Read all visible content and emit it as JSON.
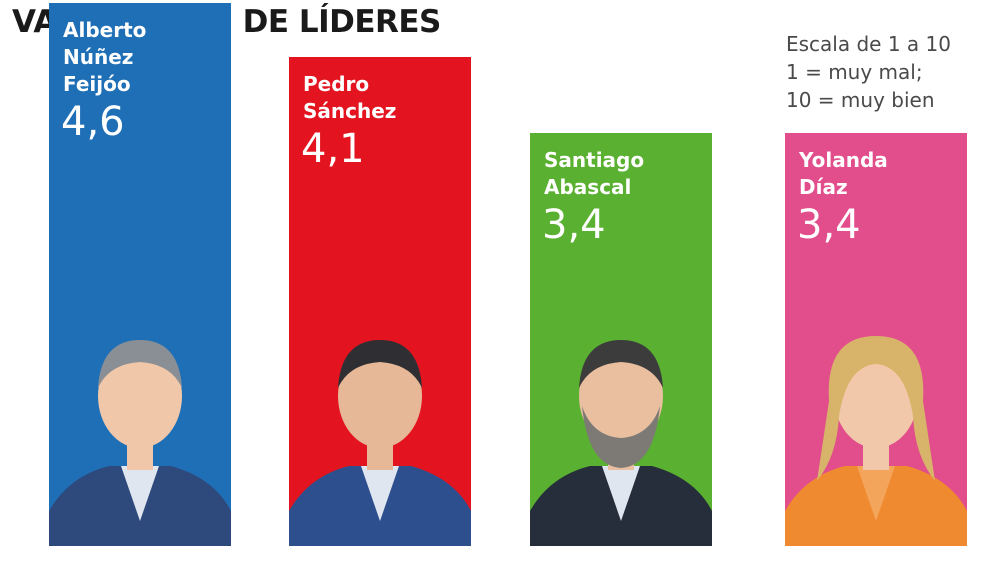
{
  "title": "VALORACIÓN DE LÍDERES",
  "legend": {
    "line1": "Escala de 1 a 10",
    "line2": "1 = muy mal;",
    "line3": "10 = muy bien"
  },
  "chart_data": {
    "type": "bar",
    "title": "VALORACIÓN DE LÍDERES",
    "categories": [
      "Alberto Núñez Feijóo",
      "Pedro Sánchez",
      "Santiago Abascal",
      "Yolanda Díaz"
    ],
    "value_labels": [
      "4,6",
      "4,1",
      "3,4",
      "3,4"
    ],
    "values": [
      4.6,
      4.1,
      3.4,
      3.4
    ],
    "colors": [
      "#1f6fb6",
      "#e3141f",
      "#5ab031",
      "#e24e8c"
    ],
    "name_lines": [
      "Alberto\nNúñez\nFeijóo",
      "Pedro\nSánchez",
      "Santiago\nAbascal",
      "Yolanda\nDíaz"
    ],
    "ylim": [
      0,
      10
    ],
    "xlabel": "",
    "ylabel": "",
    "grid": false,
    "legend_position": "top-right"
  }
}
